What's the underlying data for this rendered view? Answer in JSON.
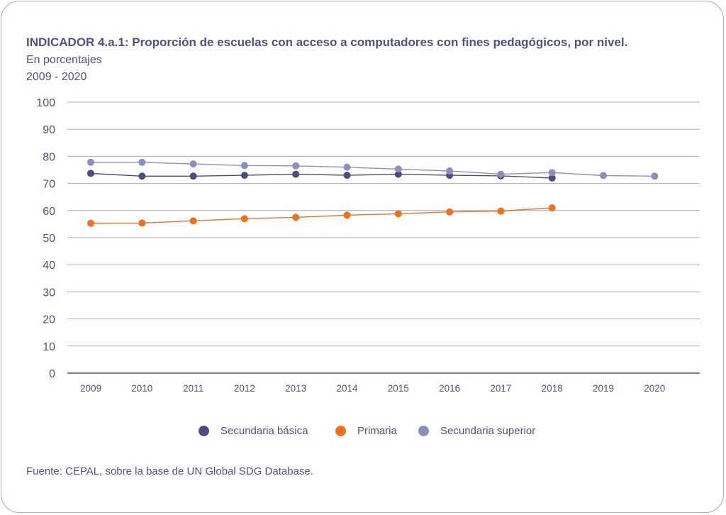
{
  "header": {
    "title": "INDICADOR 4.a.1: Proporción de escuelas con acceso a computadores con fines pedagógicos, por nivel.",
    "subtitle": "En porcentajes",
    "period": "2009 - 2020"
  },
  "colors": {
    "text": "#4f5085",
    "grid": "#a7a8c6",
    "axis": "#4f5085"
  },
  "chart_data": {
    "type": "line",
    "title": "INDICADOR 4.a.1: Proporción de escuelas con acceso a computadores con fines pedagógicos, por nivel.",
    "xlabel": "",
    "ylabel": "En porcentajes",
    "ylim": [
      0,
      100
    ],
    "yticks": [
      "100",
      "90",
      "80",
      "70",
      "60",
      "50",
      "40",
      "30",
      "20",
      "10",
      "0"
    ],
    "categories": [
      "2009",
      "2010",
      "2011",
      "2012",
      "2013",
      "2014",
      "2015",
      "2016",
      "2017",
      "2018",
      "2019",
      "2020"
    ],
    "grid": true,
    "series": [
      {
        "name": "Secundaria básica",
        "color": "#4a4c7e",
        "values": [
          73.7,
          72.7,
          72.7,
          73.0,
          73.4,
          73.0,
          73.4,
          73.0,
          72.8,
          72.0,
          null,
          null
        ]
      },
      {
        "name": "Primaria",
        "color": "#f26f1c",
        "values": [
          55.3,
          55.4,
          56.2,
          57.0,
          57.5,
          58.3,
          58.8,
          59.5,
          59.8,
          61.0,
          null,
          null
        ]
      },
      {
        "name": "Secundaria superior",
        "color": "#8c8fbd",
        "values": [
          77.8,
          77.8,
          77.2,
          76.6,
          76.5,
          76.0,
          75.3,
          74.6,
          73.4,
          74.0,
          72.9,
          72.7
        ]
      }
    ]
  },
  "legend": [
    {
      "label": "Secundaria básica",
      "color": "#4a4c7e"
    },
    {
      "label": "Primaria",
      "color": "#f26f1c"
    },
    {
      "label": "Secundaria superior",
      "color": "#8c8fbd"
    }
  ],
  "footer": {
    "source": "Fuente: CEPAL, sobre la base de UN Global SDG Database."
  }
}
